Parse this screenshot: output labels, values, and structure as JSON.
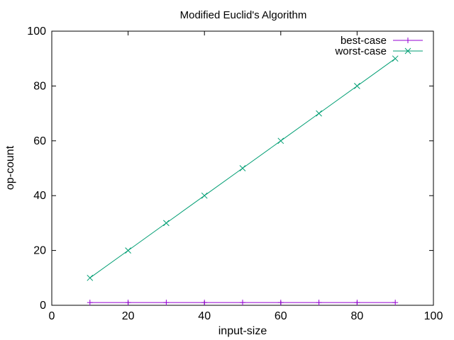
{
  "chart_data": {
    "type": "line",
    "title": "Modified Euclid's Algorithm",
    "xlabel": "input-size",
    "ylabel": "op-count",
    "xlim": [
      0,
      100
    ],
    "ylim": [
      0,
      100
    ],
    "xticks": [
      0,
      20,
      40,
      60,
      80,
      100
    ],
    "yticks": [
      0,
      20,
      40,
      60,
      80,
      100
    ],
    "grid": false,
    "legend_position": "top-right",
    "series": [
      {
        "name": "best-case",
        "color": "#9400d3",
        "marker": "plus",
        "x": [
          10,
          20,
          30,
          40,
          50,
          60,
          70,
          80,
          90
        ],
        "y": [
          1,
          1,
          1,
          1,
          1,
          1,
          1,
          1,
          1
        ]
      },
      {
        "name": "worst-case",
        "color": "#009e73",
        "marker": "cross",
        "x": [
          10,
          20,
          30,
          40,
          50,
          60,
          70,
          80,
          90
        ],
        "y": [
          10,
          20,
          30,
          40,
          50,
          60,
          70,
          80,
          90
        ]
      }
    ]
  }
}
